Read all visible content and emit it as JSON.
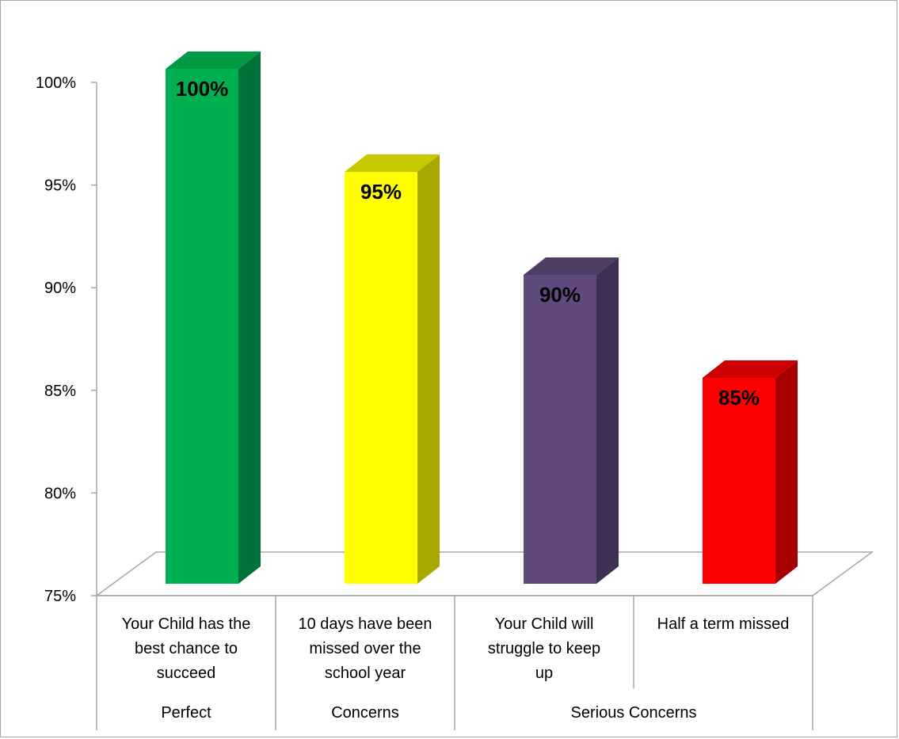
{
  "chart_data": {
    "type": "bar",
    "style": "3d-column",
    "categories": [
      "Your Child has the best chance to succeed",
      "10 days have been missed over the school year",
      "Your Child will struggle to keep up",
      "Half a term missed"
    ],
    "category_lines": [
      [
        "Your Child has the",
        "best chance to",
        "succeed"
      ],
      [
        "10 days have been",
        "missed over the",
        "school year"
      ],
      [
        "Your Child will",
        "struggle to keep",
        "up"
      ],
      [
        "Half a term missed"
      ]
    ],
    "groups": [
      {
        "label": "Perfect",
        "span": [
          0,
          0
        ]
      },
      {
        "label": "Concerns",
        "span": [
          1,
          1
        ]
      },
      {
        "label": "Serious Concerns",
        "span": [
          2,
          3
        ]
      }
    ],
    "values": [
      100,
      95,
      90,
      85
    ],
    "data_labels": [
      "100%",
      "95%",
      "90%",
      "85%"
    ],
    "colors": [
      "#00b050",
      "#ffff00",
      "#604a7b",
      "#ff0000"
    ],
    "side_colors": [
      "#00733a",
      "#a8a800",
      "#3f2f52",
      "#a80000"
    ],
    "top_colors": [
      "#009944",
      "#c8c800",
      "#4f3d66",
      "#cc0000"
    ],
    "yticks": [
      "100%",
      "95%",
      "90%",
      "85%",
      "80%",
      "75%"
    ],
    "ytick_values": [
      100,
      95,
      90,
      85,
      80,
      75
    ],
    "ylim": [
      75,
      100
    ],
    "grid": false,
    "legend": "none",
    "title": "",
    "xlabel": "",
    "ylabel": ""
  }
}
